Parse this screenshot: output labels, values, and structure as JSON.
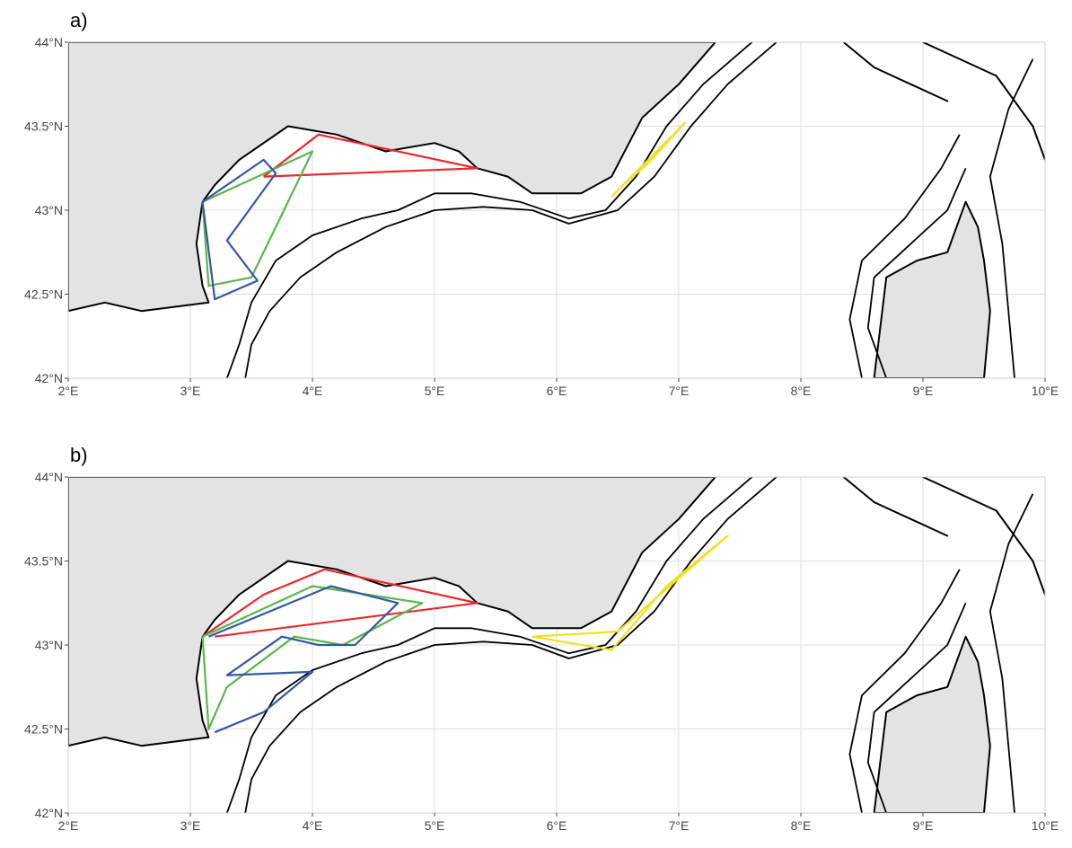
{
  "panels": [
    {
      "id": "a",
      "label": "a)",
      "lat_ticks": [
        {
          "value": 42.0,
          "label": "42°N"
        },
        {
          "value": 42.5,
          "label": "42.5°N"
        },
        {
          "value": 43.0,
          "label": "43°N"
        },
        {
          "value": 43.5,
          "label": "43.5°N"
        },
        {
          "value": 44.0,
          "label": "44°N"
        }
      ],
      "lon_ticks": [
        {
          "value": 2,
          "label": "2°E"
        },
        {
          "value": 3,
          "label": "3°E"
        },
        {
          "value": 4,
          "label": "4°E"
        },
        {
          "value": 5,
          "label": "5°E"
        },
        {
          "value": 6,
          "label": "6°E"
        },
        {
          "value": 7,
          "label": "7°E"
        },
        {
          "value": 8,
          "label": "8°E"
        },
        {
          "value": 9,
          "label": "9°E"
        },
        {
          "value": 10,
          "label": "10°E"
        }
      ],
      "polygons": [
        {
          "color": "#e8282b",
          "points": [
            [
              3.6,
              43.2
            ],
            [
              4.05,
              43.45
            ],
            [
              5.35,
              43.25
            ],
            [
              3.6,
              43.2
            ]
          ]
        },
        {
          "color": "#5ab54a",
          "points": [
            [
              3.1,
              43.05
            ],
            [
              4.0,
              43.35
            ],
            [
              3.5,
              42.6
            ],
            [
              3.15,
              42.55
            ],
            [
              3.1,
              43.05
            ]
          ]
        },
        {
          "color": "#3557a6",
          "points": [
            [
              3.1,
              43.05
            ],
            [
              3.6,
              43.3
            ],
            [
              3.7,
              43.22
            ],
            [
              3.3,
              42.82
            ],
            [
              3.55,
              42.58
            ],
            [
              3.2,
              42.47
            ],
            [
              3.1,
              43.05
            ]
          ]
        },
        {
          "color": "#f0e020",
          "points": [
            [
              6.45,
              43.08
            ],
            [
              7.05,
              43.52
            ],
            [
              6.75,
              43.28
            ],
            [
              6.5,
              43.12
            ]
          ]
        }
      ]
    },
    {
      "id": "b",
      "label": "b)",
      "lat_ticks": [
        {
          "value": 42.0,
          "label": "42°N"
        },
        {
          "value": 42.5,
          "label": "42.5°N"
        },
        {
          "value": 43.0,
          "label": "43°N"
        },
        {
          "value": 43.5,
          "label": "43.5°N"
        },
        {
          "value": 44.0,
          "label": "44°N"
        }
      ],
      "lon_ticks": [
        {
          "value": 2,
          "label": "2°E"
        },
        {
          "value": 3,
          "label": "3°E"
        },
        {
          "value": 4,
          "label": "4°E"
        },
        {
          "value": 5,
          "label": "5°E"
        },
        {
          "value": 6,
          "label": "6°E"
        },
        {
          "value": 7,
          "label": "7°E"
        },
        {
          "value": 8,
          "label": "8°E"
        },
        {
          "value": 9,
          "label": "9°E"
        },
        {
          "value": 10,
          "label": "10°E"
        }
      ],
      "polygons": [
        {
          "color": "#e8282b",
          "points": [
            [
              3.1,
              43.05
            ],
            [
              3.6,
              43.3
            ],
            [
              4.1,
              43.45
            ],
            [
              5.35,
              43.25
            ],
            [
              3.2,
              43.05
            ]
          ]
        },
        {
          "color": "#5ab54a",
          "points": [
            [
              3.1,
              43.05
            ],
            [
              4.0,
              43.35
            ],
            [
              4.9,
              43.25
            ],
            [
              4.25,
              43.0
            ],
            [
              3.85,
              43.05
            ],
            [
              3.3,
              42.75
            ],
            [
              3.15,
              42.5
            ],
            [
              3.1,
              43.05
            ]
          ]
        },
        {
          "color": "#3557a6",
          "points": [
            [
              3.15,
              43.05
            ],
            [
              4.15,
              43.35
            ],
            [
              4.7,
              43.25
            ],
            [
              4.35,
              43.0
            ],
            [
              4.05,
              43.0
            ],
            [
              3.75,
              43.05
            ],
            [
              3.3,
              42.82
            ],
            [
              4.0,
              42.84
            ],
            [
              3.6,
              42.6
            ],
            [
              3.2,
              42.48
            ]
          ]
        },
        {
          "color": "#f0e020",
          "points": [
            [
              5.8,
              43.05
            ],
            [
              6.5,
              43.08
            ],
            [
              7.4,
              43.65
            ],
            [
              6.9,
              43.35
            ],
            [
              6.45,
              42.97
            ],
            [
              5.8,
              43.05
            ]
          ]
        }
      ]
    }
  ]
}
